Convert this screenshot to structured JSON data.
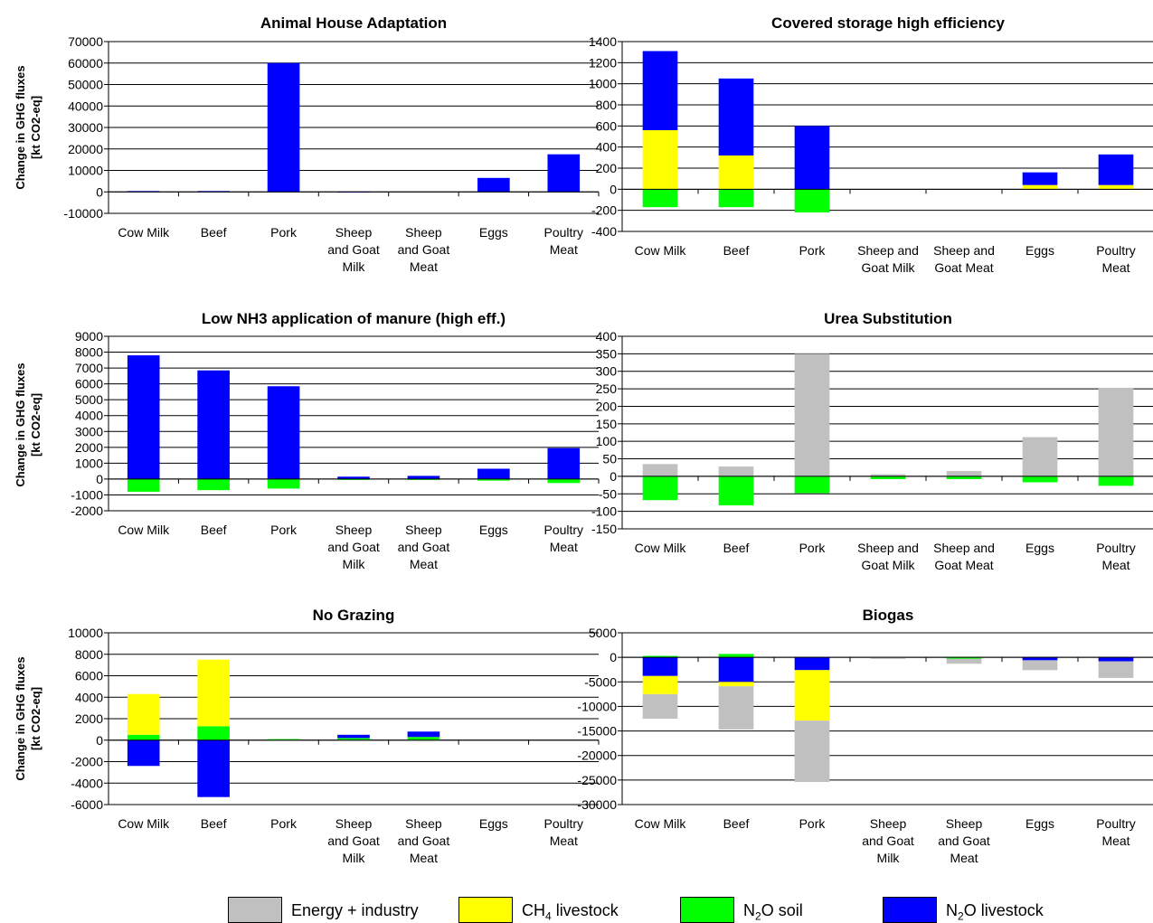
{
  "y_axis_label_line1": "Change in GHG fluxes",
  "y_axis_label_line2": "[kt CO2-eq]",
  "legend": [
    {
      "key": "energy",
      "label": "Energy + industry",
      "color": "#c0c0c0"
    },
    {
      "key": "ch4",
      "label_main": "CH",
      "label_sub": "4",
      "label_rest": " livestock",
      "color": "#ffff00"
    },
    {
      "key": "n2o_soil",
      "label_main": "N",
      "label_sub": "2",
      "label_rest": "O soil",
      "color": "#00ff00"
    },
    {
      "key": "n2o_live",
      "label_main": "N",
      "label_sub": "2",
      "label_rest": "O livestock",
      "color": "#0000ff"
    }
  ],
  "chart_data": [
    {
      "type": "bar",
      "stacked": true,
      "title": "Animal House Adaptation",
      "categories": [
        "Cow Milk",
        "Beef",
        "Pork",
        "Sheep and Goat Milk",
        "Sheep and Goat Meat",
        "Eggs",
        "Poultry Meat"
      ],
      "category_lines": [
        [
          "Cow Milk"
        ],
        [
          "Beef"
        ],
        [
          "Pork"
        ],
        [
          "Sheep",
          "and Goat",
          "Milk"
        ],
        [
          "Sheep",
          "and Goat",
          "Meat"
        ],
        [
          "Eggs"
        ],
        [
          "Poultry",
          "Meat"
        ]
      ],
      "ylim": [
        -10000,
        70000
      ],
      "yticks": [
        -10000,
        0,
        10000,
        20000,
        30000,
        40000,
        50000,
        60000,
        70000
      ],
      "series": [
        {
          "key": "energy",
          "values": [
            0,
            0,
            0,
            0,
            0,
            0,
            0
          ]
        },
        {
          "key": "ch4",
          "values": [
            0,
            0,
            0,
            0,
            0,
            0,
            0
          ]
        },
        {
          "key": "n2o_soil",
          "values": [
            0,
            0,
            0,
            0,
            0,
            0,
            0
          ]
        },
        {
          "key": "n2o_live",
          "values": [
            400,
            400,
            60000,
            100,
            0,
            6500,
            17500
          ]
        }
      ]
    },
    {
      "type": "bar",
      "stacked": true,
      "title": "Covered storage high efficiency",
      "categories": [
        "Cow Milk",
        "Beef",
        "Pork",
        "Sheep and Goat Milk",
        "Sheep and Goat Meat",
        "Eggs",
        "Poultry Meat"
      ],
      "category_lines": [
        [
          "Cow Milk"
        ],
        [
          "Beef"
        ],
        [
          "Pork"
        ],
        [
          "Sheep and",
          "Goat Milk"
        ],
        [
          "Sheep and",
          "Goat Meat"
        ],
        [
          "Eggs"
        ],
        [
          "Poultry",
          "Meat"
        ]
      ],
      "ylim": [
        -400,
        1400
      ],
      "yticks": [
        -400,
        -200,
        0,
        200,
        400,
        600,
        800,
        1000,
        1200,
        1400
      ],
      "series": [
        {
          "key": "energy",
          "values": [
            0,
            0,
            0,
            0,
            0,
            0,
            0
          ]
        },
        {
          "key": "ch4",
          "values": [
            560,
            320,
            0,
            0,
            0,
            40,
            40
          ]
        },
        {
          "key": "n2o_soil",
          "values": [
            -170,
            -170,
            -220,
            0,
            0,
            0,
            0
          ]
        },
        {
          "key": "n2o_live",
          "values": [
            750,
            730,
            600,
            0,
            0,
            120,
            290
          ]
        }
      ]
    },
    {
      "type": "bar",
      "stacked": true,
      "title": "Low NH3 application of manure (high eff.)",
      "categories": [
        "Cow Milk",
        "Beef",
        "Pork",
        "Sheep and Goat Milk",
        "Sheep and Goat Meat",
        "Eggs",
        "Poultry Meat"
      ],
      "category_lines": [
        [
          "Cow Milk"
        ],
        [
          "Beef"
        ],
        [
          "Pork"
        ],
        [
          "Sheep",
          "and Goat",
          "Milk"
        ],
        [
          "Sheep",
          "and Goat",
          "Meat"
        ],
        [
          "Eggs"
        ],
        [
          "Poultry",
          "Meat"
        ]
      ],
      "ylim": [
        -2000,
        9000
      ],
      "yticks": [
        -2000,
        -1000,
        0,
        1000,
        2000,
        3000,
        4000,
        5000,
        6000,
        7000,
        8000,
        9000
      ],
      "series": [
        {
          "key": "energy",
          "values": [
            0,
            0,
            0,
            0,
            0,
            0,
            0
          ]
        },
        {
          "key": "ch4",
          "values": [
            0,
            0,
            0,
            0,
            0,
            0,
            0
          ]
        },
        {
          "key": "n2o_soil",
          "values": [
            -800,
            -700,
            -600,
            -50,
            -50,
            -100,
            -250
          ]
        },
        {
          "key": "n2o_live",
          "values": [
            7800,
            6850,
            5850,
            150,
            200,
            650,
            1950
          ]
        }
      ]
    },
    {
      "type": "bar",
      "stacked": true,
      "title": "Urea Substitution",
      "categories": [
        "Cow Milk",
        "Beef",
        "Pork",
        "Sheep and Goat Milk",
        "Sheep and Goat Meat",
        "Eggs",
        "Poultry Meat"
      ],
      "category_lines": [
        [
          "Cow Milk"
        ],
        [
          "Beef"
        ],
        [
          "Pork"
        ],
        [
          "Sheep and",
          "Goat Milk"
        ],
        [
          "Sheep and",
          "Goat Meat"
        ],
        [
          "Eggs"
        ],
        [
          "Poultry",
          "Meat"
        ]
      ],
      "ylim": [
        -150,
        400
      ],
      "yticks": [
        -150,
        -100,
        -50,
        0,
        50,
        100,
        150,
        200,
        250,
        300,
        350,
        400
      ],
      "series": [
        {
          "key": "energy",
          "values": [
            35,
            28,
            350,
            6,
            15,
            112,
            253
          ]
        },
        {
          "key": "ch4",
          "values": [
            0,
            0,
            0,
            0,
            0,
            0,
            0
          ]
        },
        {
          "key": "n2o_soil",
          "values": [
            -68,
            -83,
            -48,
            -8,
            -8,
            -17,
            -27
          ]
        },
        {
          "key": "n2o_live",
          "values": [
            0,
            0,
            0,
            0,
            0,
            0,
            0
          ]
        }
      ]
    },
    {
      "type": "bar",
      "stacked": true,
      "title": "No Grazing",
      "categories": [
        "Cow Milk",
        "Beef",
        "Pork",
        "Sheep and Goat Milk",
        "Sheep and Goat Meat",
        "Eggs",
        "Poultry Meat"
      ],
      "category_lines": [
        [
          "Cow Milk"
        ],
        [
          "Beef"
        ],
        [
          "Pork"
        ],
        [
          "Sheep",
          "and Goat",
          "Milk"
        ],
        [
          "Sheep",
          "and Goat",
          "Meat"
        ],
        [
          "Eggs"
        ],
        [
          "Poultry",
          "Meat"
        ]
      ],
      "ylim": [
        -6000,
        10000
      ],
      "yticks": [
        -6000,
        -4000,
        -2000,
        0,
        2000,
        4000,
        6000,
        8000,
        10000
      ],
      "series": [
        {
          "key": "energy",
          "values": [
            0,
            0,
            0,
            0,
            0,
            0,
            0
          ]
        },
        {
          "key": "n2o_soil",
          "values": [
            500,
            1300,
            100,
            200,
            300,
            0,
            0
          ]
        },
        {
          "key": "ch4",
          "values": [
            3800,
            6200,
            0,
            0,
            0,
            0,
            0
          ]
        },
        {
          "key": "n2o_live",
          "values": [
            -2400,
            -5300,
            0,
            300,
            500,
            0,
            0
          ]
        }
      ]
    },
    {
      "type": "bar",
      "stacked": true,
      "title": "Biogas",
      "categories": [
        "Cow Milk",
        "Beef",
        "Pork",
        "Sheep and Goat Milk",
        "Sheep and Goat Meat",
        "Eggs",
        "Poultry Meat"
      ],
      "category_lines": [
        [
          "Cow Milk"
        ],
        [
          "Beef"
        ],
        [
          "Pork"
        ],
        [
          "Sheep",
          "and Goat",
          "Milk"
        ],
        [
          "Sheep",
          "and Goat",
          "Meat"
        ],
        [
          "Eggs"
        ],
        [
          "Poultry",
          "Meat"
        ]
      ],
      "ylim": [
        -30000,
        5000
      ],
      "yticks": [
        -30000,
        -25000,
        -20000,
        -15000,
        -10000,
        -5000,
        0,
        5000
      ],
      "series": [
        {
          "key": "n2o_soil",
          "values": [
            300,
            700,
            0,
            0,
            -300,
            0,
            0
          ]
        },
        {
          "key": "n2o_live",
          "values": [
            -3800,
            -5000,
            -2600,
            0,
            0,
            -600,
            -800
          ]
        },
        {
          "key": "ch4",
          "values": [
            -3700,
            -900,
            -10300,
            0,
            0,
            0,
            0
          ]
        },
        {
          "key": "energy",
          "values": [
            -5000,
            -8800,
            -12500,
            -300,
            -1000,
            -2000,
            -3400
          ]
        }
      ]
    }
  ]
}
